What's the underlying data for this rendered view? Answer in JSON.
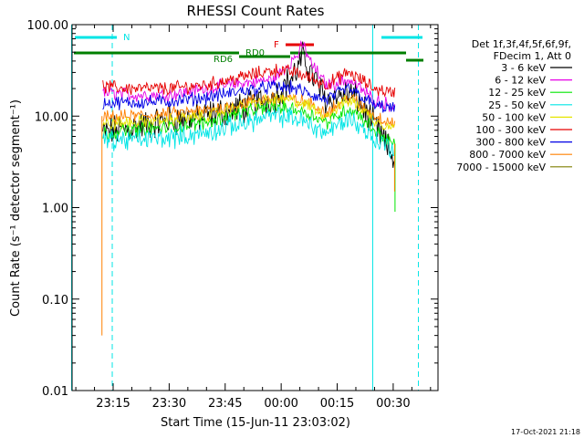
{
  "chart_data": {
    "type": "line",
    "title": "RHESSI Count Rates",
    "xlabel": "Start Time (15-Jun-11 23:03:02)",
    "ylabel": "Count Rate (s⁻¹ detector segment⁻¹)",
    "yscale": "log",
    "ylim": [
      0.01,
      100
    ],
    "xlim": [
      "23:04",
      "00:42"
    ],
    "y_ticks": [
      "0.01",
      "0.10",
      "1.00",
      "10.00",
      "100.00"
    ],
    "x_ticks": [
      "23:15",
      "23:30",
      "23:45",
      "00:00",
      "00:15",
      "00:30"
    ],
    "legend_header": [
      "Det 1f,3f,4f,5f,6f,9f,",
      "FDecim 1, Att 0"
    ],
    "legend_position": "right",
    "footer_date": "17-Oct-2021 21:18",
    "annotations": [
      {
        "label": "N",
        "color": "#00e5e5"
      },
      {
        "label": "RD0",
        "color": "#007f00"
      },
      {
        "label": "RD6",
        "color": "#007f00"
      },
      {
        "label": "F",
        "color": "#e60000"
      }
    ],
    "series": [
      {
        "name": "3 - 6 keV",
        "color": "#000000",
        "t": [
          "23:12",
          "23:20",
          "23:30",
          "23:40",
          "23:50",
          "23:58",
          "00:04",
          "00:06",
          "00:08",
          "00:12",
          "00:18",
          "00:20",
          "00:25",
          "00:30"
        ],
        "values": [
          6.5,
          7.5,
          9.0,
          10.0,
          12.5,
          16.0,
          30,
          45,
          30,
          15,
          18,
          16,
          8,
          3.5
        ]
      },
      {
        "name": "6 - 12 keV",
        "color": "#e600e6",
        "t": [
          "23:12",
          "23:20",
          "23:30",
          "23:40",
          "23:50",
          "23:58",
          "00:04",
          "00:06",
          "00:08",
          "00:12",
          "00:18",
          "00:20",
          "00:25",
          "00:30"
        ],
        "values": [
          18,
          17,
          17,
          20,
          23,
          25,
          45,
          60,
          38,
          22,
          25,
          22,
          15,
          13
        ]
      },
      {
        "name": "12 - 25 keV",
        "color": "#00e600",
        "t": [
          "23:12",
          "23:20",
          "23:30",
          "23:40",
          "23:50",
          "23:58",
          "00:04",
          "00:08",
          "00:12",
          "00:18",
          "00:20",
          "00:25",
          "00:30"
        ],
        "values": [
          6.5,
          7.0,
          7.5,
          8.5,
          11.0,
          12.5,
          12.0,
          10.5,
          8.5,
          12.0,
          11.0,
          7.0,
          5.0
        ]
      },
      {
        "name": "25 - 50 keV",
        "color": "#00e5e5",
        "t": [
          "23:12",
          "23:20",
          "23:30",
          "23:40",
          "23:50",
          "23:58",
          "00:04",
          "00:08",
          "00:12",
          "00:18",
          "00:20",
          "00:25",
          "00:30"
        ],
        "values": [
          5.5,
          5.5,
          5.8,
          6.5,
          8.5,
          10.0,
          9.5,
          8.0,
          6.5,
          9.5,
          8.5,
          5.5,
          4.5
        ]
      },
      {
        "name": "50 - 100 keV",
        "color": "#e6e600",
        "t": [
          "23:12",
          "23:20",
          "23:30",
          "23:40",
          "23:50",
          "23:58",
          "00:04",
          "00:08",
          "00:12",
          "00:18",
          "00:20",
          "00:25",
          "00:30"
        ],
        "values": [
          8.0,
          8.5,
          9.0,
          10.0,
          13.0,
          15.0,
          14.5,
          12.5,
          10.0,
          15.0,
          13.5,
          9.0,
          7.5
        ]
      },
      {
        "name": "100 - 300 keV",
        "color": "#e60000",
        "t": [
          "23:12",
          "23:20",
          "23:30",
          "23:40",
          "23:50",
          "23:58",
          "00:04",
          "00:08",
          "00:12",
          "00:18",
          "00:20",
          "00:25",
          "00:30"
        ],
        "values": [
          21,
          20,
          20,
          22,
          27,
          32,
          30,
          26,
          22,
          30,
          27,
          20,
          18
        ]
      },
      {
        "name": "300 - 800 keV",
        "color": "#0000e6",
        "t": [
          "23:12",
          "23:20",
          "23:30",
          "23:40",
          "23:50",
          "23:58",
          "00:04",
          "00:08",
          "00:12",
          "00:18",
          "00:20",
          "00:25",
          "00:30"
        ],
        "values": [
          14,
          14,
          14.5,
          16,
          19,
          21,
          20,
          17,
          15,
          20,
          18,
          13,
          12
        ]
      },
      {
        "name": "800 - 7000 keV",
        "color": "#ff8000",
        "t": [
          "23:12",
          "23:20",
          "23:30",
          "23:40",
          "23:50",
          "23:58",
          "00:04",
          "00:08",
          "00:12",
          "00:18",
          "00:20",
          "00:25",
          "00:30"
        ],
        "values": [
          9.5,
          10.0,
          10.5,
          11.5,
          14.0,
          16.0,
          15.0,
          13.5,
          11.0,
          16.0,
          14.5,
          10.0,
          8.5
        ]
      },
      {
        "name": "7000 - 15000 keV",
        "color": "#7f7f00",
        "t": [],
        "values": []
      }
    ]
  }
}
